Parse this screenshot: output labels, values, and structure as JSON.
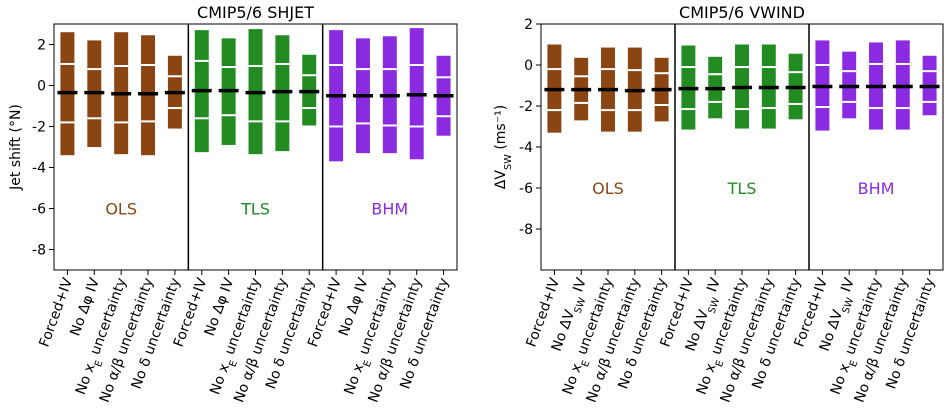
{
  "chart_data": [
    {
      "type": "bar",
      "title": "CMIP5/6 SHJET",
      "ylabel": "Jet shift (°N)",
      "ylim": [
        -9,
        3
      ],
      "yticks": [
        2,
        0,
        -2,
        -4,
        -6,
        -8
      ],
      "ytick_labels": [
        "2",
        "0",
        "-2",
        "-4",
        "-6",
        "-8"
      ],
      "categories": [
        "Forced+IV",
        "No Δφ IV",
        "No x_E uncertainty",
        "No α/β uncertainty",
        "No δ uncertainty"
      ],
      "groups": [
        {
          "name": "OLS",
          "color": "#8B4513",
          "bars": [
            {
              "low": -3.4,
              "high": 2.6,
              "median": -0.35,
              "inner": [
                1.05,
                -1.8
              ]
            },
            {
              "low": -3.0,
              "high": 2.2,
              "median": -0.35,
              "inner": [
                0.8,
                -1.6
              ]
            },
            {
              "low": -3.35,
              "high": 2.6,
              "median": -0.4,
              "inner": [
                0.95,
                -1.8
              ]
            },
            {
              "low": -3.4,
              "high": 2.45,
              "median": -0.4,
              "inner": [
                1.0,
                -1.75
              ]
            },
            {
              "low": -2.1,
              "high": 1.45,
              "median": -0.35,
              "inner": [
                0.45,
                -1.1
              ]
            }
          ]
        },
        {
          "name": "TLS",
          "color": "#228B22",
          "bars": [
            {
              "low": -3.25,
              "high": 2.7,
              "median": -0.25,
              "inner": [
                1.2,
                -1.6
              ]
            },
            {
              "low": -2.9,
              "high": 2.3,
              "median": -0.25,
              "inner": [
                0.9,
                -1.45
              ]
            },
            {
              "low": -3.35,
              "high": 2.75,
              "median": -0.35,
              "inner": [
                0.95,
                -1.75
              ]
            },
            {
              "low": -3.2,
              "high": 2.45,
              "median": -0.3,
              "inner": [
                1.05,
                -1.75
              ]
            },
            {
              "low": -1.95,
              "high": 1.5,
              "median": -0.3,
              "inner": [
                0.5,
                -1.1
              ]
            }
          ]
        },
        {
          "name": "BHM",
          "color": "#8A2BE2",
          "bars": [
            {
              "low": -3.7,
              "high": 2.7,
              "median": -0.5,
              "inner": [
                1.0,
                -2.0
              ]
            },
            {
              "low": -3.3,
              "high": 2.3,
              "median": -0.5,
              "inner": [
                0.8,
                -1.85
              ]
            },
            {
              "low": -3.3,
              "high": 2.4,
              "median": -0.5,
              "inner": [
                0.8,
                -1.95
              ]
            },
            {
              "low": -3.6,
              "high": 2.8,
              "median": -0.45,
              "inner": [
                1.0,
                -2.0
              ]
            },
            {
              "low": -2.45,
              "high": 1.45,
              "median": -0.5,
              "inner": [
                0.4,
                -1.5
              ]
            }
          ]
        }
      ]
    },
    {
      "type": "bar",
      "title": "CMIP5/6 VWIND",
      "ylabel": "ΔV_SW (ms⁻¹)",
      "ylim": [
        -10,
        2
      ],
      "yticks": [
        2,
        0,
        -2,
        -4,
        -6,
        -8
      ],
      "ytick_labels": [
        "2",
        "0",
        "-2",
        "-4",
        "-6",
        "-8"
      ],
      "categories": [
        "Forced+IV",
        "No ΔV_SW IV",
        "No x_E uncertainty",
        "No α/β uncertainty",
        "No δ uncertainty"
      ],
      "groups": [
        {
          "name": "OLS",
          "color": "#8B4513",
          "bars": [
            {
              "low": -3.3,
              "high": 1.0,
              "median": -1.2,
              "inner": [
                -0.2,
                -2.2
              ]
            },
            {
              "low": -2.7,
              "high": 0.35,
              "median": -1.2,
              "inner": [
                -0.55,
                -1.85
              ]
            },
            {
              "low": -3.25,
              "high": 0.85,
              "median": -1.2,
              "inner": [
                -0.2,
                -2.2
              ]
            },
            {
              "low": -3.25,
              "high": 0.85,
              "median": -1.25,
              "inner": [
                -0.25,
                -2.2
              ]
            },
            {
              "low": -2.75,
              "high": 0.35,
              "median": -1.2,
              "inner": [
                -0.4,
                -1.95
              ]
            }
          ]
        },
        {
          "name": "TLS",
          "color": "#228B22",
          "bars": [
            {
              "low": -3.15,
              "high": 0.95,
              "median": -1.15,
              "inner": [
                -0.1,
                -2.15
              ]
            },
            {
              "low": -2.6,
              "high": 0.4,
              "median": -1.15,
              "inner": [
                -0.45,
                -1.8
              ]
            },
            {
              "low": -3.1,
              "high": 1.0,
              "median": -1.1,
              "inner": [
                -0.1,
                -2.15
              ]
            },
            {
              "low": -3.1,
              "high": 1.0,
              "median": -1.1,
              "inner": [
                -0.1,
                -2.1
              ]
            },
            {
              "low": -2.65,
              "high": 0.55,
              "median": -1.1,
              "inner": [
                -0.35,
                -1.9
              ]
            }
          ]
        },
        {
          "name": "BHM",
          "color": "#8A2BE2",
          "bars": [
            {
              "low": -3.2,
              "high": 1.2,
              "median": -1.05,
              "inner": [
                0.0,
                -2.05
              ]
            },
            {
              "low": -2.6,
              "high": 0.65,
              "median": -1.05,
              "inner": [
                -0.3,
                -1.8
              ]
            },
            {
              "low": -3.15,
              "high": 1.1,
              "median": -1.05,
              "inner": [
                0.05,
                -2.1
              ]
            },
            {
              "low": -3.15,
              "high": 1.2,
              "median": -1.05,
              "inner": [
                0.05,
                -2.1
              ]
            },
            {
              "low": -2.45,
              "high": 0.45,
              "median": -1.05,
              "inner": [
                -0.3,
                -1.8
              ]
            }
          ]
        }
      ]
    }
  ]
}
